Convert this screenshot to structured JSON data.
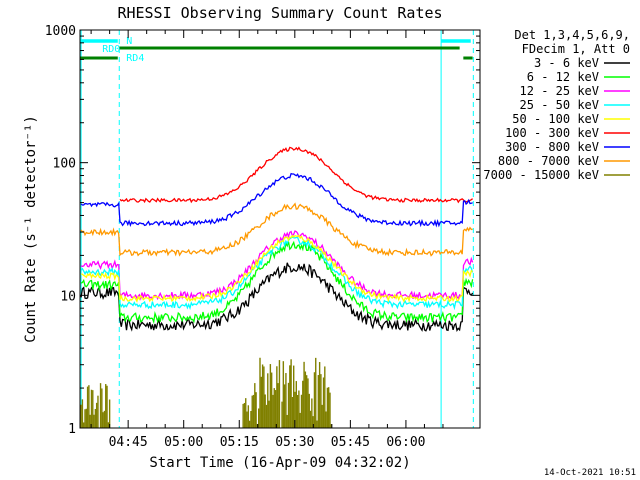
{
  "chart_data": {
    "type": "line",
    "title": "RHESSI Observing Summary Count Rates",
    "xlabel": "Start Time (16-Apr-09 04:32:02)",
    "ylabel": "Count Rate (s⁻¹ detector⁻¹)",
    "y_scale": "log",
    "ylim": [
      1,
      1000
    ],
    "xlim_minutes_after_0432": [
      0,
      108
    ],
    "x_ticks": [
      {
        "label": "04:45",
        "minute": 13
      },
      {
        "label": "05:00",
        "minute": 28
      },
      {
        "label": "05:15",
        "minute": 43
      },
      {
        "label": "05:30",
        "minute": 58
      },
      {
        "label": "05:45",
        "minute": 73
      },
      {
        "label": "06:00",
        "minute": 88
      }
    ],
    "y_ticks": [
      {
        "label": "1",
        "value": 1
      },
      {
        "label": "10",
        "value": 10
      },
      {
        "label": "100",
        "value": 100
      },
      {
        "label": "1000",
        "value": 1000
      }
    ],
    "legend_header": [
      "Det 1,3,4,5,6,9,",
      "FDecim 1, Att 0"
    ],
    "legend_position": "right",
    "footer_date": "14-Oct-2021 10:51",
    "series": [
      {
        "name": "3 - 6 keV",
        "color": "#000000",
        "start": 10.5,
        "base": 6.0,
        "peak": 16.5,
        "noise": 0.1
      },
      {
        "name": "6 - 12 keV",
        "color": "#00ff00",
        "start": 12.0,
        "base": 6.8,
        "peak": 24.5,
        "noise": 0.08
      },
      {
        "name": "12 - 25 keV",
        "color": "#ff00ff",
        "start": 17.0,
        "base": 10.0,
        "peak": 29.0,
        "noise": 0.06
      },
      {
        "name": "25 - 50 keV",
        "color": "#00ffff",
        "start": 15.0,
        "base": 8.5,
        "peak": 26.0,
        "noise": 0.06
      },
      {
        "name": "50 - 100 keV",
        "color": "#ffff00",
        "start": 14.0,
        "base": 9.5,
        "peak": 27.5,
        "noise": 0.05
      },
      {
        "name": "100 - 300 keV",
        "color": "#ff0000",
        "start": 0,
        "base": 52.0,
        "peak": 128.0,
        "noise": 0.03
      },
      {
        "name": "300 - 800 keV",
        "color": "#0000ff",
        "start": 48.0,
        "base": 35.0,
        "peak": 80.0,
        "noise": 0.04
      },
      {
        "name": "800 - 7000 keV",
        "color": "#ff9900",
        "start": 30.0,
        "base": 21.0,
        "peak": 47.0,
        "noise": 0.05
      },
      {
        "name": "7000 - 15000 keV",
        "color": "#808000",
        "start": 2.0,
        "base": 1.0,
        "peak": 3.0,
        "noise": 0.2
      }
    ],
    "annotations": [
      {
        "text": "N",
        "color": "#00ffff"
      },
      {
        "text": "RD0",
        "color": "#00ffff"
      },
      {
        "text": "RD4",
        "color": "#00ffff"
      }
    ],
    "bars": [
      {
        "name": "N",
        "color": "#00ffff",
        "segments": [
          [
            0,
            10.2
          ],
          [
            97.5,
            105.5
          ]
        ]
      },
      {
        "name": "RD0",
        "color": "#008000",
        "segments": [
          [
            10.6,
            102.5
          ]
        ]
      },
      {
        "name": "RD4",
        "color": "#008000",
        "segments": [
          [
            0,
            10.2
          ],
          [
            103.5,
            106
          ]
        ]
      }
    ],
    "vlines": [
      {
        "minute": 0.3,
        "color": "#00ffff",
        "style": "solid"
      },
      {
        "minute": 10.6,
        "color": "#00ffff",
        "style": "dashed"
      },
      {
        "minute": 97.5,
        "color": "#00ffff",
        "style": "solid"
      },
      {
        "minute": 106.2,
        "color": "#00ffff",
        "style": "dashed"
      }
    ]
  }
}
